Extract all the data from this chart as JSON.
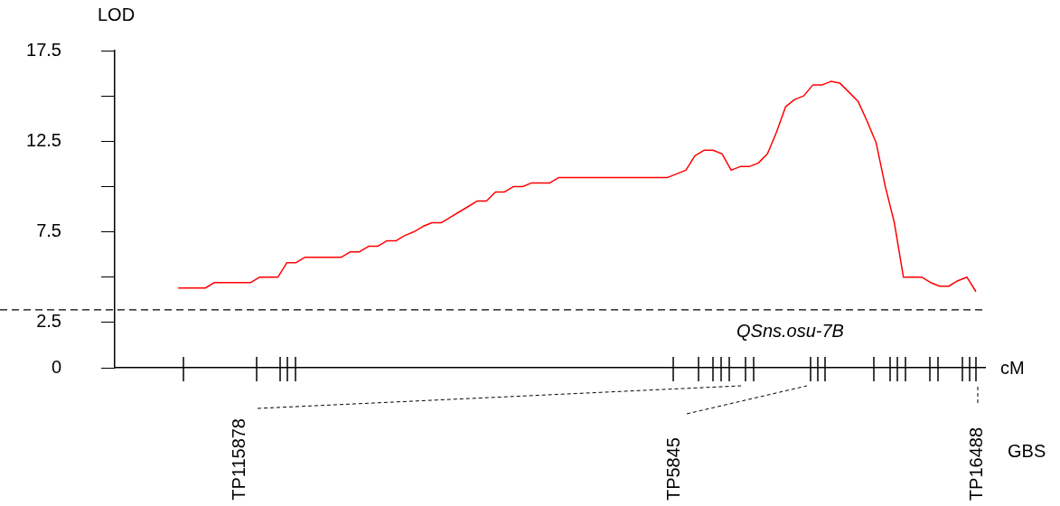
{
  "chart_data": {
    "type": "line",
    "ylabel": "LOD",
    "xlabel": "cM",
    "categories": [
      null,
      null,
      null,
      null,
      null,
      null,
      null,
      null,
      null,
      null,
      null,
      null,
      null,
      null,
      null,
      null,
      null,
      null,
      null,
      null,
      null,
      null,
      null,
      null,
      null,
      null,
      null,
      null,
      null,
      null,
      null,
      null,
      null,
      null,
      null,
      null,
      null,
      null,
      null,
      null,
      null,
      null,
      null,
      null,
      null,
      null,
      null,
      null,
      null,
      null,
      null,
      null,
      null,
      null,
      null,
      null,
      null,
      null,
      null,
      null,
      null,
      null,
      null,
      null,
      null,
      null,
      null,
      null,
      null,
      null,
      null,
      null,
      null,
      null,
      null,
      null,
      null,
      null,
      null,
      null,
      null,
      null,
      null,
      null,
      null,
      null,
      null,
      null,
      null,
      null,
      null,
      null,
      null,
      null,
      null,
      null,
      null
    ],
    "series": [
      {
        "color": "#ff0000",
        "values": [
          null,
          null,
          null,
          null,
          null,
          null,
          null,
          4.4,
          4.4,
          4.4,
          4.4,
          4.7,
          4.7,
          4.7,
          4.7,
          4.7,
          5.0,
          5.0,
          5.0,
          5.8,
          5.8,
          6.1,
          6.1,
          6.1,
          6.1,
          6.1,
          6.4,
          6.4,
          6.7,
          6.7,
          7.0,
          7.0,
          7.3,
          7.5,
          7.8,
          8.0,
          8.0,
          8.3,
          8.6,
          8.9,
          9.2,
          9.2,
          9.7,
          9.7,
          10.0,
          10.0,
          10.2,
          10.2,
          10.2,
          10.5,
          10.5,
          10.5,
          10.5,
          10.5,
          10.5,
          10.5,
          10.5,
          10.5,
          10.5,
          10.5,
          10.5,
          10.5,
          10.7,
          10.9,
          11.7,
          12.0,
          12.0,
          11.8,
          10.9,
          11.1,
          11.1,
          11.3,
          11.8,
          13.0,
          14.4,
          14.8,
          15.0,
          15.6,
          15.6,
          15.8,
          15.7,
          15.2,
          14.7,
          13.6,
          12.4,
          10.0,
          8.0,
          5.0,
          5.0,
          5.0,
          4.7,
          4.5,
          4.5,
          4.8,
          5.0,
          4.2,
          null
        ]
      }
    ],
    "ylim": [
      0,
      17.5
    ],
    "yticks": [
      0,
      2.5,
      {
        "value": 5,
        "label": null
      },
      7.5,
      {
        "value": 10,
        "label": null
      },
      12.5,
      {
        "value": 15,
        "label": null
      },
      17.5
    ],
    "tick_labels": "y",
    "marker": "none",
    "line_style": "solid",
    "legend": false,
    "grid": false,
    "ref_lines": [
      {
        "axis": "y",
        "value": 3.2,
        "color": "#000000",
        "line_style": "dashed"
      }
    ],
    "annotations": [
      "QSns.osu-7B",
      "TP115878",
      "TP5845",
      "TP16488",
      "GBS"
    ]
  }
}
